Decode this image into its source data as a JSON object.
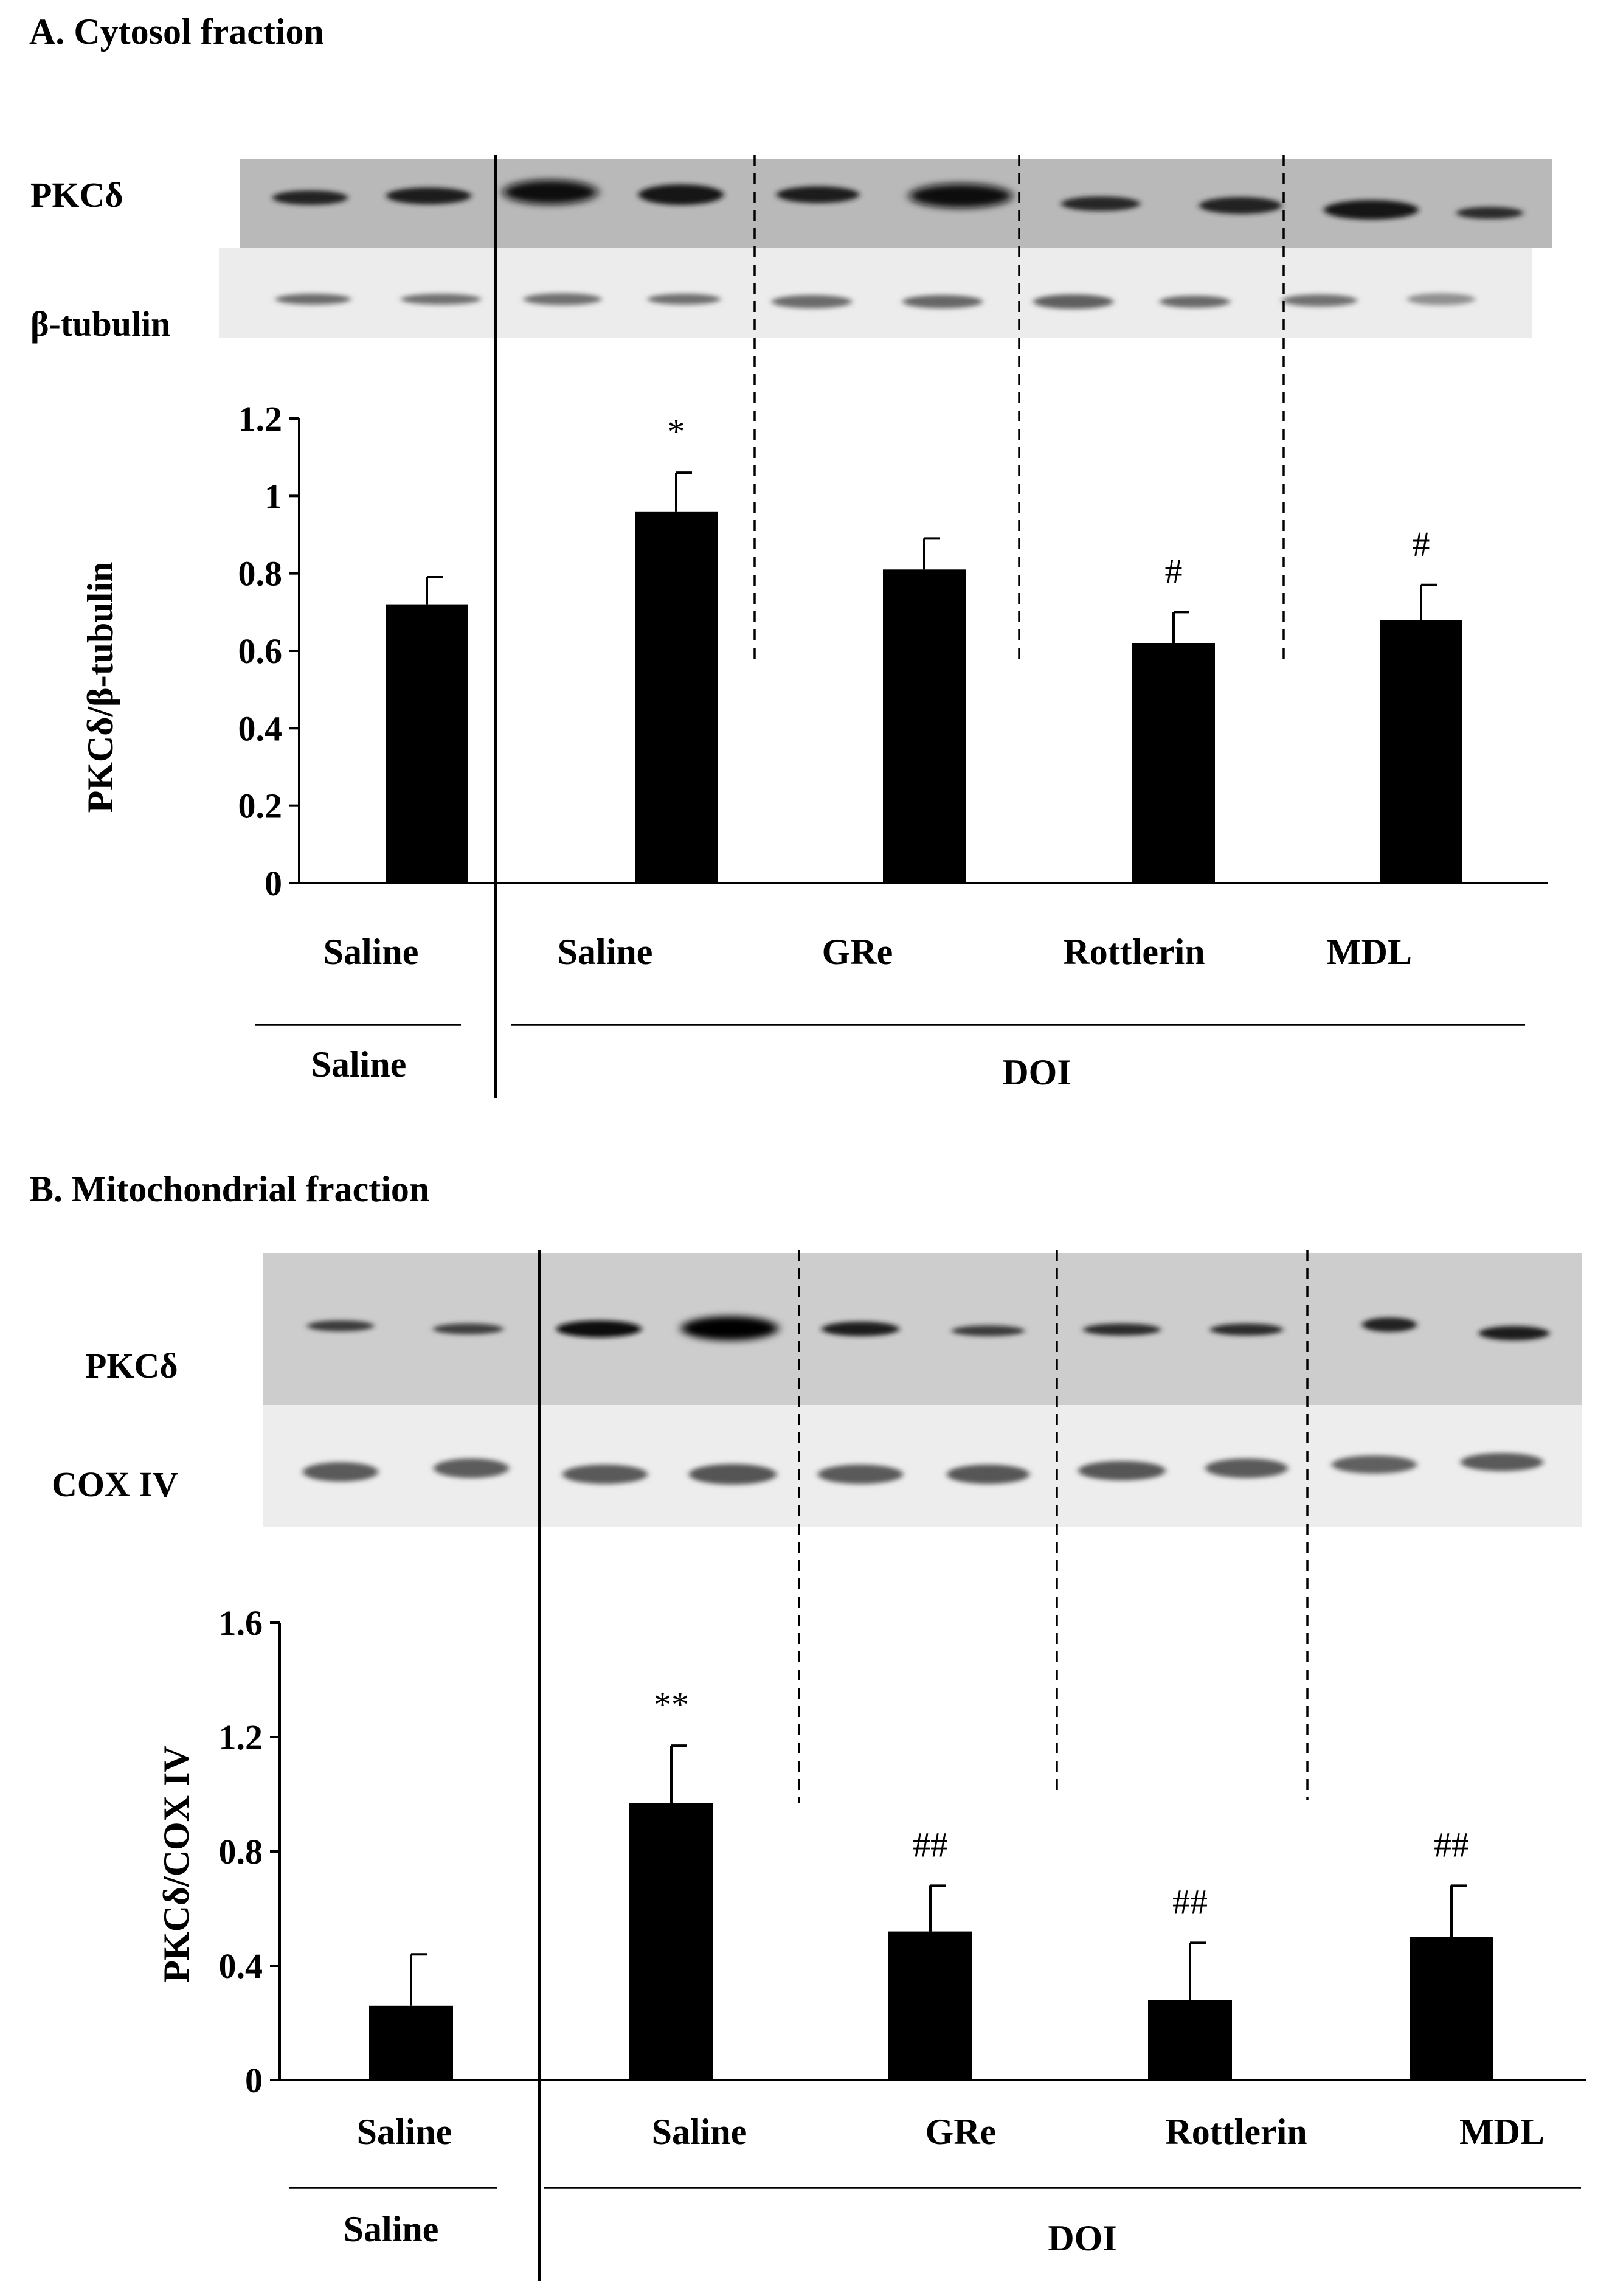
{
  "chart_data": [
    {
      "panel_title": "A. Cytosol fraction",
      "type": "bar",
      "blot_labels": [
        "PKCδ",
        "β-tubulin"
      ],
      "categories": [
        "Saline",
        "Saline",
        "GRe",
        "Rottlerin",
        "MDL"
      ],
      "values": [
        0.72,
        0.96,
        0.81,
        0.62,
        0.68
      ],
      "errors": [
        0.07,
        0.1,
        0.08,
        0.08,
        0.09
      ],
      "annotations": [
        "",
        "*",
        "",
        "#",
        "#"
      ],
      "ylabel": "PKCδ/β-tubulin",
      "yticks": [
        "0",
        "0.2",
        "0.4",
        "0.6",
        "0.8",
        "1",
        "1.2"
      ],
      "ylim": [
        0,
        1.2
      ],
      "group_labels": [
        "Saline",
        "DOI"
      ]
    },
    {
      "panel_title": "B. Mitochondrial fraction",
      "type": "bar",
      "blot_labels": [
        "PKCδ",
        "COX IV"
      ],
      "categories": [
        "Saline",
        "Saline",
        "GRe",
        "Rottlerin",
        "MDL"
      ],
      "values": [
        0.26,
        0.97,
        0.52,
        0.28,
        0.5
      ],
      "errors": [
        0.18,
        0.2,
        0.16,
        0.2,
        0.18
      ],
      "annotations": [
        "",
        "**",
        "##",
        "##",
        "##"
      ],
      "ylabel": "PKCδ/COX IV",
      "yticks": [
        "0",
        "0.4",
        "0.8",
        "1.2",
        "1.6"
      ],
      "ylim": [
        0,
        1.6
      ],
      "group_labels": [
        "Saline",
        "DOI"
      ]
    }
  ]
}
